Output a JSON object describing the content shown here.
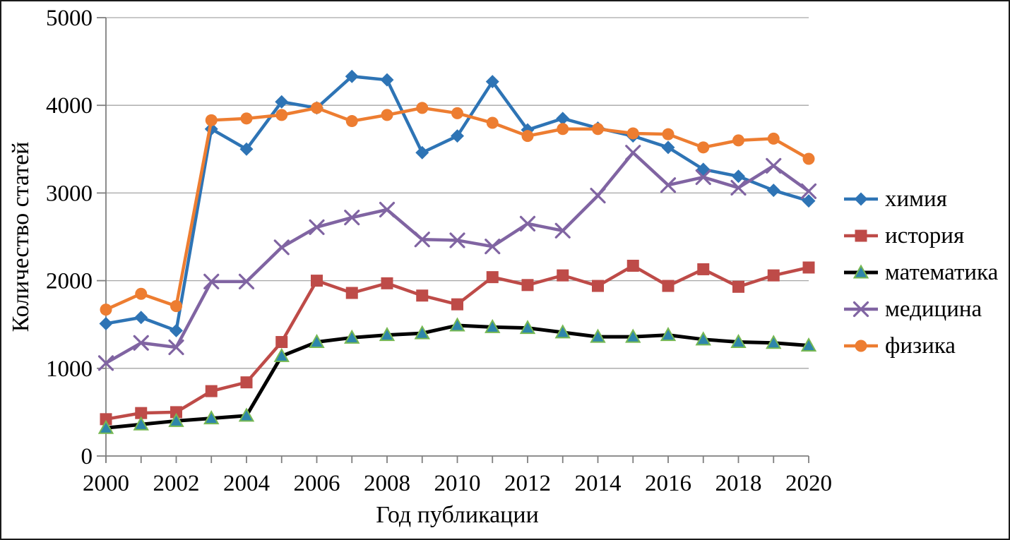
{
  "figure": {
    "background": "#FFFFFF",
    "border_color": "#1a1a1a"
  },
  "styles": {
    "grid_color": "#A6A6A6",
    "axis_color": "#7F7F7F",
    "text_color": "#000000"
  },
  "chart_data": {
    "type": "line",
    "title": "",
    "xlabel": "Год публикации",
    "ylabel": "Количество статей",
    "x": [
      2000,
      2001,
      2002,
      2003,
      2004,
      2005,
      2006,
      2007,
      2008,
      2009,
      2010,
      2011,
      2012,
      2013,
      2014,
      2015,
      2016,
      2017,
      2018,
      2019,
      2020
    ],
    "x_label_every": 2,
    "ylim": [
      0,
      5000
    ],
    "ytick_interval": 1000,
    "ytick_labels": [
      "0",
      "1000",
      "2000",
      "3000",
      "4000",
      "5000"
    ],
    "grid": "horizontal",
    "legend_position": "right",
    "series": [
      {
        "key": "chemistry",
        "name": "химия",
        "color": "#2E74B5",
        "marker": "diamond",
        "line_width": 4.5,
        "values": [
          1510,
          1580,
          1430,
          3730,
          3500,
          4040,
          3970,
          4330,
          4290,
          3460,
          3650,
          4270,
          3720,
          3850,
          3740,
          3650,
          3520,
          3270,
          3190,
          3030,
          2910
        ]
      },
      {
        "key": "history",
        "name": "история",
        "color": "#BE4B48",
        "marker": "square",
        "line_width": 4.5,
        "values": [
          420,
          490,
          500,
          740,
          840,
          1300,
          2000,
          1860,
          1970,
          1830,
          1730,
          2040,
          1950,
          2060,
          1940,
          2170,
          1940,
          2130,
          1930,
          2060,
          2150
        ]
      },
      {
        "key": "mathematics",
        "name": "математика",
        "color": "#000000",
        "marker": "triangle",
        "marker_fill": "#2E86AB",
        "marker_stroke": "#76B852",
        "line_width": 5,
        "values": [
          320,
          360,
          400,
          430,
          460,
          1140,
          1300,
          1350,
          1380,
          1400,
          1490,
          1470,
          1460,
          1410,
          1360,
          1360,
          1380,
          1330,
          1300,
          1290,
          1260
        ]
      },
      {
        "key": "medicine",
        "name": "медицина",
        "color": "#8064A2",
        "marker": "x",
        "line_width": 4.5,
        "values": [
          1060,
          1290,
          1240,
          1990,
          1990,
          2380,
          2610,
          2720,
          2810,
          2470,
          2460,
          2390,
          2650,
          2570,
          2970,
          3460,
          3090,
          3180,
          3060,
          3310,
          3020
        ]
      },
      {
        "key": "physics",
        "name": "физика",
        "color": "#ED7D31",
        "marker": "circle",
        "line_width": 4.5,
        "values": [
          1670,
          1850,
          1710,
          3830,
          3850,
          3890,
          3970,
          3820,
          3890,
          3970,
          3910,
          3800,
          3650,
          3730,
          3730,
          3680,
          3670,
          3520,
          3600,
          3620,
          3390
        ]
      }
    ]
  }
}
